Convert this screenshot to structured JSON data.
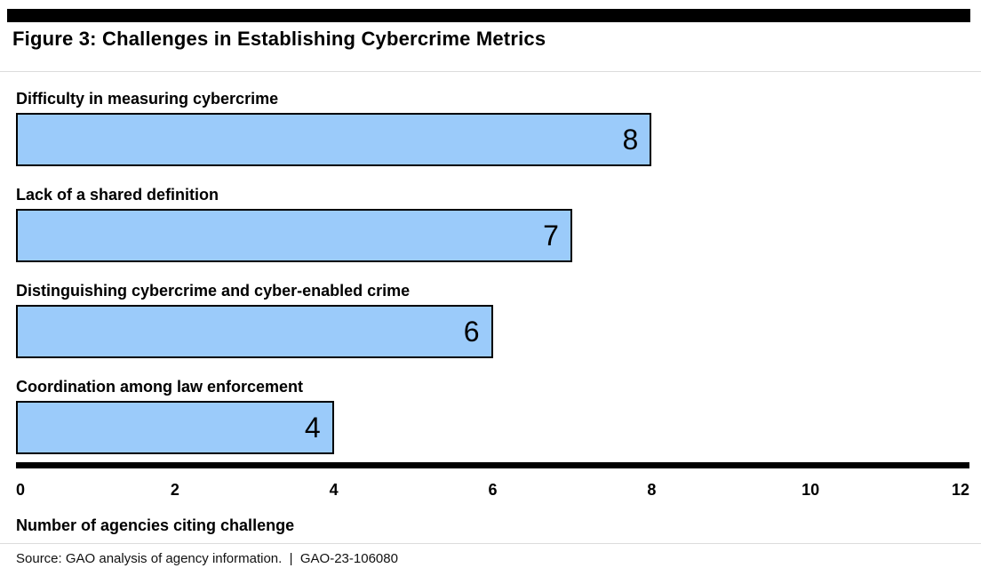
{
  "header": {
    "title": "Figure 3: Challenges in Establishing Cybercrime Metrics"
  },
  "chart_data": {
    "type": "bar",
    "orientation": "horizontal",
    "title": "Figure 3: Challenges in Establishing Cybercrime Metrics",
    "categories": [
      "Difficulty in measuring cybercrime",
      "Lack of a shared definition",
      "Distinguishing cybercrime and cyber-enabled crime",
      "Coordination among law enforcement"
    ],
    "values": [
      8,
      7,
      6,
      4
    ],
    "xlabel": "Number of agencies citing challenge",
    "ylabel": "",
    "xlim": [
      0,
      12
    ],
    "xticks": [
      0,
      2,
      4,
      6,
      8,
      10,
      12
    ],
    "grid": false,
    "legend": false,
    "value_labels_position": "inside-end",
    "colors": {
      "bar_fill": "#9BCBFA",
      "bar_border": "#000000",
      "axis_line": "#000000",
      "band": "#000000"
    }
  },
  "footer": {
    "source": "Source: GAO analysis of agency information.  |  GAO-23-106080"
  }
}
